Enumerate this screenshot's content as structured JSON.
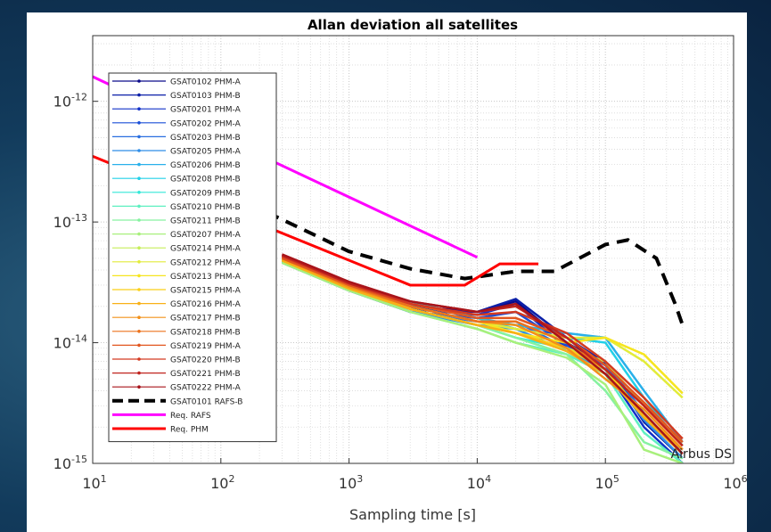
{
  "chart_data": {
    "type": "line",
    "title": "Allan deviation all satellites",
    "xlabel": "Sampling time [s]",
    "annotation": "Airbus DS",
    "x_scale": "log",
    "y_scale": "log",
    "grid": true,
    "minor_grid": true,
    "legend": "top-left",
    "xlim": [
      10,
      1000000
    ],
    "ylim": [
      1e-15,
      3.5e-12
    ],
    "xticks": [
      {
        "value": 10,
        "label": "10",
        "exponent": "1"
      },
      {
        "value": 100,
        "label": "10",
        "exponent": "2"
      },
      {
        "value": 1000,
        "label": "10",
        "exponent": "3"
      },
      {
        "value": 10000,
        "label": "10",
        "exponent": "4"
      },
      {
        "value": 100000,
        "label": "10",
        "exponent": "5"
      },
      {
        "value": 1000000,
        "label": "10",
        "exponent": "6"
      }
    ],
    "yticks": [
      {
        "value": 1e-15,
        "label": "10",
        "exponent": "-15"
      },
      {
        "value": 1e-14,
        "label": "10",
        "exponent": "-14"
      },
      {
        "value": 1e-13,
        "label": "10",
        "exponent": "-13"
      },
      {
        "value": 1e-12,
        "label": "10",
        "exponent": "-12"
      }
    ],
    "series": [
      {
        "name": "GSAT0102 PHM-A",
        "color": "#0a0a8a",
        "marker": "dot",
        "x": [
          300,
          1000,
          3000,
          10000,
          20000,
          50000,
          100000,
          200000,
          400000
        ],
        "values": [
          5.2e-14,
          3e-14,
          2e-14,
          1.8e-14,
          2.2e-14,
          1e-14,
          6.5e-15,
          2.5e-15,
          1.2e-15
        ]
      },
      {
        "name": "GSAT0103 PHM-B",
        "color": "#0b1fa8",
        "marker": "dot",
        "x": [
          300,
          1000,
          3000,
          10000,
          20000,
          50000,
          100000,
          200000,
          400000
        ],
        "values": [
          5e-14,
          2.9e-14,
          1.9e-14,
          1.8e-14,
          2.3e-14,
          1.1e-14,
          6.8e-15,
          2.2e-15,
          1.1e-15
        ]
      },
      {
        "name": "GSAT0201 PHM-A",
        "color": "#1030c8",
        "marker": "dot",
        "x": [
          300,
          1000,
          3000,
          10000,
          20000,
          50000,
          100000,
          200000,
          400000
        ],
        "values": [
          4.8e-14,
          2.8e-14,
          1.9e-14,
          1.7e-14,
          2.1e-14,
          9e-15,
          6e-15,
          2e-15,
          1e-15
        ]
      },
      {
        "name": "GSAT0202 PHM-A",
        "color": "#1a4fd8",
        "marker": "dot",
        "x": [
          300,
          1000,
          3000,
          10000,
          20000,
          50000,
          100000,
          200000,
          400000
        ],
        "values": [
          4.9e-14,
          2.8e-14,
          1.8e-14,
          1.6e-14,
          1.8e-14,
          9.5e-15,
          6.5e-15,
          2.4e-15,
          1.3e-15
        ]
      },
      {
        "name": "GSAT0203 PHM-B",
        "color": "#2a6fe0",
        "marker": "dot",
        "x": [
          300,
          1000,
          3000,
          10000,
          20000,
          50000,
          100000,
          200000,
          400000
        ],
        "values": [
          4.7e-14,
          2.7e-14,
          1.8e-14,
          1.5e-14,
          1.5e-14,
          9e-15,
          7e-15,
          2.6e-15,
          1.2e-15
        ]
      },
      {
        "name": "GSAT0205 PHM-A",
        "color": "#2f8ee8",
        "marker": "dot",
        "x": [
          300,
          1000,
          3000,
          10000,
          20000,
          50000,
          100000,
          200000,
          400000
        ],
        "values": [
          4.6e-14,
          2.7e-14,
          1.8e-14,
          1.4e-14,
          1.3e-14,
          8.5e-15,
          6e-15,
          2.3e-15,
          1.1e-15
        ]
      },
      {
        "name": "GSAT0206 PHM-B",
        "color": "#29b0ea",
        "marker": "dot",
        "x": [
          300,
          1000,
          3000,
          10000,
          20000,
          50000,
          100000,
          200000,
          400000
        ],
        "values": [
          4.9e-14,
          3e-14,
          2.1e-14,
          1.6e-14,
          1.4e-14,
          1.2e-14,
          1.1e-14,
          4e-15,
          1.5e-15
        ]
      },
      {
        "name": "GSAT0208 PHM-B",
        "color": "#22d0e8",
        "marker": "dot",
        "x": [
          300,
          1000,
          3000,
          10000,
          20000,
          50000,
          100000,
          200000,
          400000
        ],
        "values": [
          5e-14,
          3.1e-14,
          2.2e-14,
          1.6e-14,
          1.3e-14,
          1.1e-14,
          1e-14,
          3.5e-15,
          1.4e-15
        ]
      },
      {
        "name": "GSAT0209 PHM-B",
        "color": "#33e8d8",
        "marker": "dot",
        "x": [
          300,
          1000,
          3000,
          10000,
          20000,
          50000,
          100000,
          200000,
          400000
        ],
        "values": [
          4.8e-14,
          2.9e-14,
          1.9e-14,
          1.4e-14,
          1.1e-14,
          9e-15,
          6e-15,
          2.5e-15,
          1.2e-15
        ]
      },
      {
        "name": "GSAT0210 PHM-B",
        "color": "#5ef0c0",
        "marker": "dot",
        "x": [
          300,
          1000,
          3000,
          10000,
          20000,
          50000,
          100000,
          200000,
          400000
        ],
        "values": [
          4.7e-14,
          2.8e-14,
          1.8e-14,
          1.3e-14,
          1e-14,
          8e-15,
          5.5e-15,
          1.8e-15,
          1e-15
        ]
      },
      {
        "name": "GSAT0211 PHM-B",
        "color": "#86f2a0",
        "marker": "dot",
        "x": [
          300,
          1000,
          3000,
          10000,
          20000,
          50000,
          100000,
          200000,
          400000
        ],
        "values": [
          4.9e-14,
          2.9e-14,
          1.9e-14,
          1.4e-14,
          1.1e-14,
          8e-15,
          4e-15,
          1.5e-15,
          1.1e-15
        ]
      },
      {
        "name": "GSAT0207 PHM-A",
        "color": "#a8f07c",
        "marker": "dot",
        "x": [
          300,
          1000,
          3000,
          10000,
          20000,
          50000,
          100000,
          200000,
          400000
        ],
        "values": [
          4.6e-14,
          2.7e-14,
          1.8e-14,
          1.3e-14,
          1e-14,
          7.5e-15,
          4.5e-15,
          1.3e-15,
          1e-15
        ]
      },
      {
        "name": "GSAT0214 PHM-A",
        "color": "#c6ee58",
        "marker": "dot",
        "x": [
          300,
          1000,
          3000,
          10000,
          20000,
          50000,
          100000,
          200000,
          400000
        ],
        "values": [
          4.8e-14,
          2.8e-14,
          1.9e-14,
          1.4e-14,
          1.2e-14,
          9e-15,
          7e-15,
          3e-15,
          1.5e-15
        ]
      },
      {
        "name": "GSAT0212 PHM-A",
        "color": "#e2ec3a",
        "marker": "dot",
        "x": [
          300,
          1000,
          3000,
          10000,
          20000,
          50000,
          100000,
          200000,
          400000
        ],
        "values": [
          5e-14,
          3e-14,
          2e-14,
          1.5e-14,
          1.3e-14,
          1.1e-14,
          1.1e-14,
          7e-15,
          3.5e-15
        ]
      },
      {
        "name": "GSAT0213 PHM-A",
        "color": "#f6e51f",
        "marker": "dot",
        "x": [
          300,
          1000,
          3000,
          10000,
          20000,
          50000,
          100000,
          200000,
          400000
        ],
        "values": [
          5.1e-14,
          3e-14,
          2e-14,
          1.5e-14,
          1.2e-14,
          1e-14,
          1.1e-14,
          8e-15,
          3.8e-15
        ]
      },
      {
        "name": "GSAT0215 PHM-A",
        "color": "#fbcf18",
        "marker": "dot",
        "x": [
          300,
          1000,
          3000,
          10000,
          20000,
          50000,
          100000,
          200000,
          400000
        ],
        "values": [
          4.9e-14,
          2.9e-14,
          1.9e-14,
          1.4e-14,
          1.2e-14,
          9e-15,
          6e-15,
          2.5e-15,
          1.3e-15
        ]
      },
      {
        "name": "GSAT0216 PHM-A",
        "color": "#f8b017",
        "marker": "dot",
        "x": [
          300,
          1000,
          3000,
          10000,
          20000,
          50000,
          100000,
          200000,
          400000
        ],
        "values": [
          4.8e-14,
          2.8e-14,
          1.9e-14,
          1.4e-14,
          1.2e-14,
          8.5e-15,
          5.5e-15,
          2.4e-15,
          1.2e-15
        ]
      },
      {
        "name": "GSAT0217 PHM-B",
        "color": "#f39019",
        "marker": "dot",
        "x": [
          300,
          1000,
          3000,
          10000,
          20000,
          50000,
          100000,
          200000,
          400000
        ],
        "values": [
          5e-14,
          2.9e-14,
          2e-14,
          1.5e-14,
          1.4e-14,
          9e-15,
          5e-15,
          2.8e-15,
          1.3e-15
        ]
      },
      {
        "name": "GSAT0218 PHM-B",
        "color": "#ec721c",
        "marker": "dot",
        "x": [
          300,
          1000,
          3000,
          10000,
          20000,
          50000,
          100000,
          200000,
          400000
        ],
        "values": [
          5.1e-14,
          3e-14,
          2e-14,
          1.5e-14,
          1.5e-14,
          1e-14,
          6e-15,
          3e-15,
          1.4e-15
        ]
      },
      {
        "name": "GSAT0219 PHM-A",
        "color": "#e2561f",
        "marker": "dot",
        "x": [
          300,
          1000,
          3000,
          10000,
          20000,
          50000,
          100000,
          200000,
          400000
        ],
        "values": [
          5e-14,
          3e-14,
          2.1e-14,
          1.6e-14,
          1.6e-14,
          1.1e-14,
          6.5e-15,
          3.2e-15,
          1.5e-15
        ]
      },
      {
        "name": "GSAT0220 PHM-B",
        "color": "#d43a20",
        "marker": "dot",
        "x": [
          300,
          1000,
          3000,
          10000,
          20000,
          50000,
          100000,
          200000,
          400000
        ],
        "values": [
          5.2e-14,
          3.1e-14,
          2.1e-14,
          1.7e-14,
          1.8e-14,
          1.2e-14,
          7e-15,
          3.5e-15,
          1.6e-15
        ]
      },
      {
        "name": "GSAT0221 PHM-B",
        "color": "#c0241e",
        "marker": "dot",
        "x": [
          300,
          1000,
          3000,
          10000,
          20000,
          50000,
          100000,
          200000,
          400000
        ],
        "values": [
          5.3e-14,
          3.1e-14,
          2.2e-14,
          1.8e-14,
          2e-14,
          1.1e-14,
          6e-15,
          3e-15,
          1.4e-15
        ]
      },
      {
        "name": "GSAT0222 PHM-A",
        "color": "#a8141a",
        "marker": "dot",
        "x": [
          300,
          1000,
          3000,
          10000,
          20000,
          50000,
          100000,
          200000,
          400000
        ],
        "values": [
          5.4e-14,
          3.2e-14,
          2.2e-14,
          1.8e-14,
          2.1e-14,
          1e-14,
          5.5e-15,
          2.6e-15,
          1.2e-15
        ]
      },
      {
        "name": "GSAT0101 RAFS-B",
        "color": "#000000",
        "line_style": "dashed",
        "line_width": 4,
        "x": [
          230,
          1000,
          3000,
          8000,
          20000,
          40000,
          100000,
          150000,
          250000,
          350000,
          400000
        ],
        "values": [
          1.2e-13,
          5.7e-14,
          4.1e-14,
          3.4e-14,
          3.9e-14,
          3.9e-14,
          6.5e-14,
          7.1e-14,
          5e-14,
          2.1e-14,
          1.4e-14
        ]
      },
      {
        "name": "Req. RAFS",
        "color": "#ff00ff",
        "line_width": 3,
        "x": [
          10,
          10000
        ],
        "values": [
          1.6e-12,
          5.1e-14
        ]
      },
      {
        "name": "Req. PHM",
        "color": "#ff0000",
        "line_width": 3,
        "x": [
          10,
          3000,
          8000,
          15000,
          30000
        ],
        "values": [
          3.5e-13,
          3e-14,
          3e-14,
          4.5e-14,
          4.5e-14
        ]
      }
    ]
  }
}
